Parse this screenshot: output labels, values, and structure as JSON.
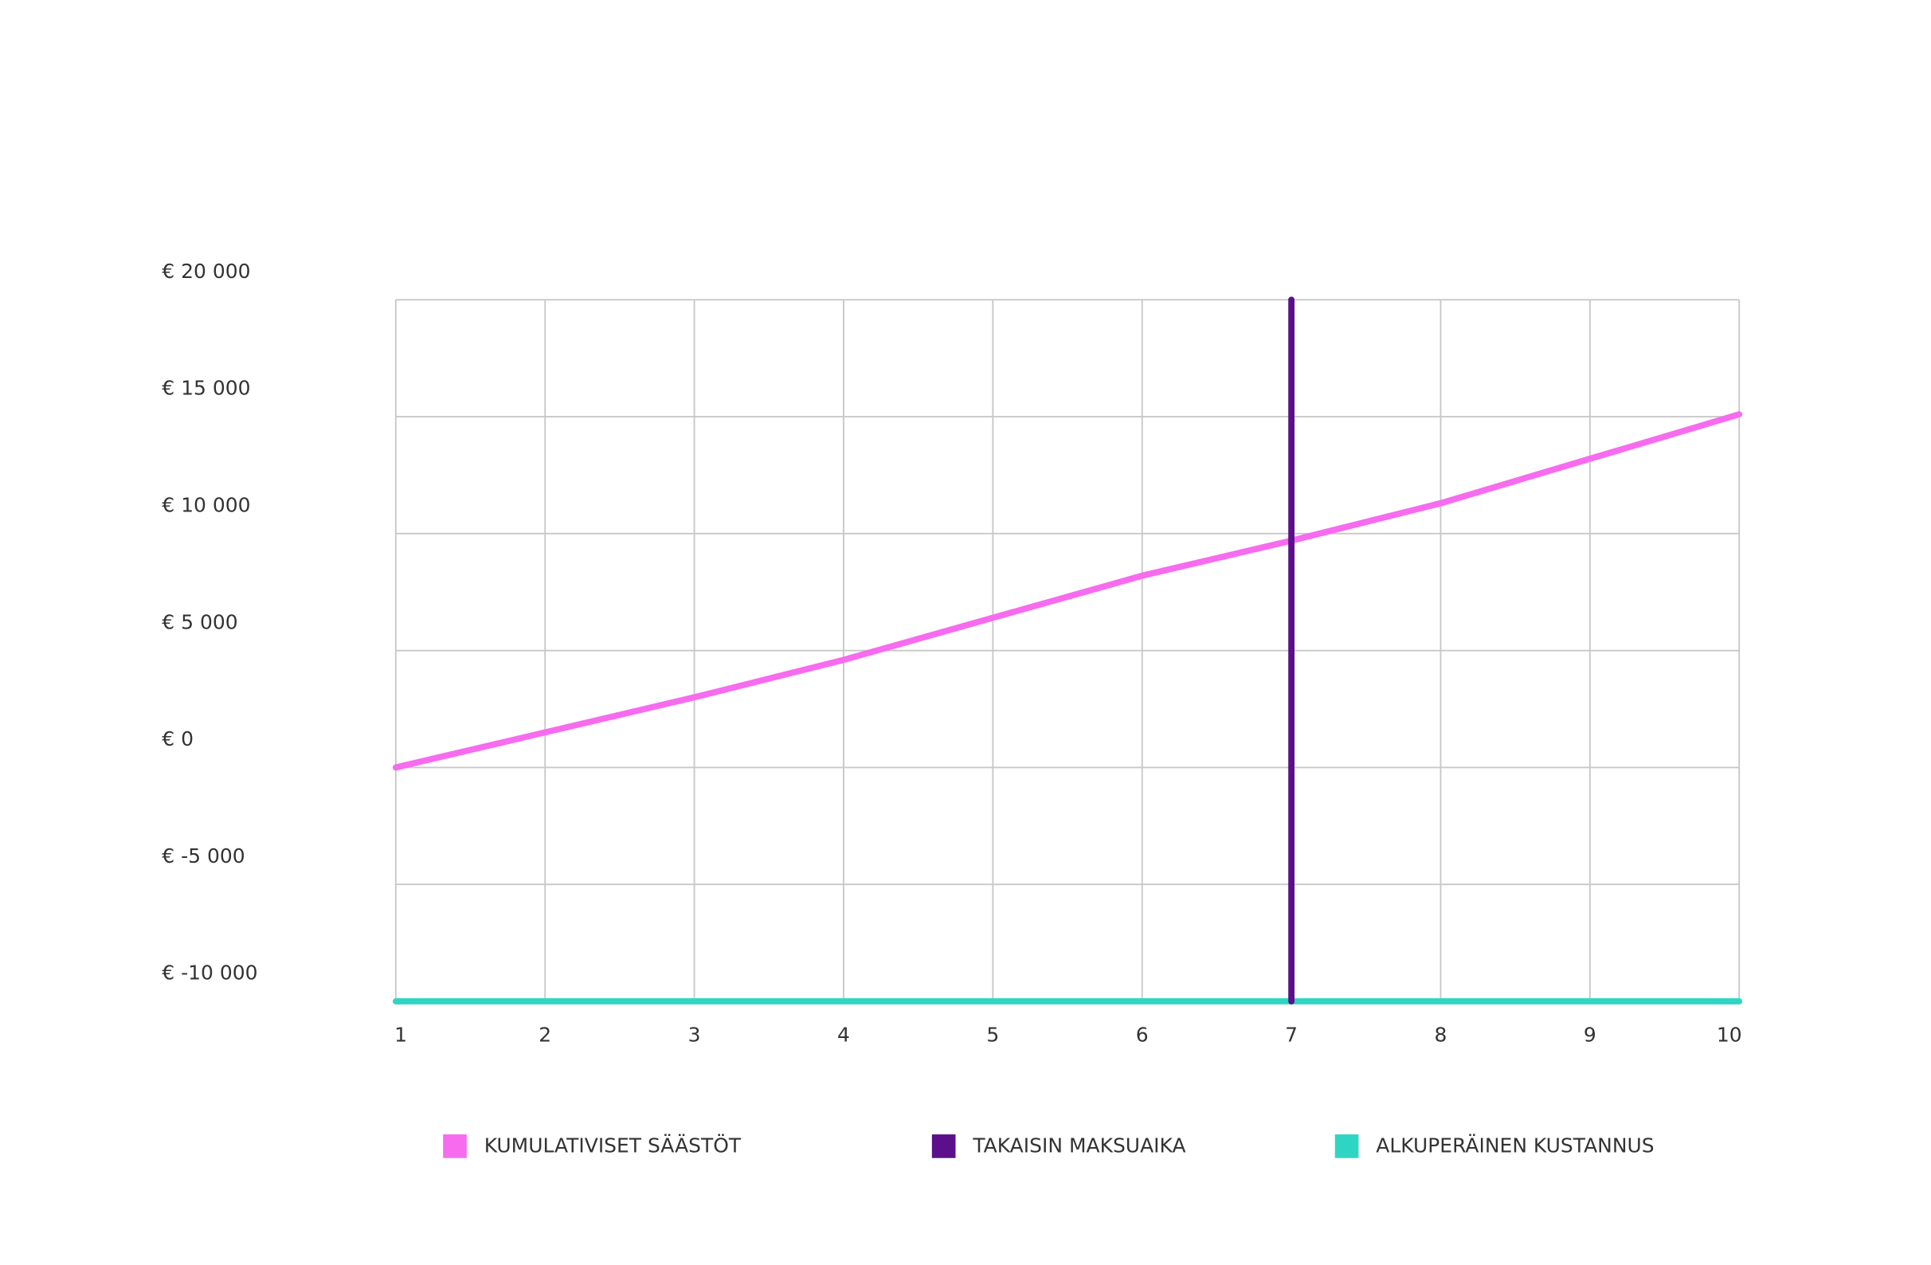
{
  "chart_data": {
    "type": "line",
    "xlim": [
      1,
      10
    ],
    "xticks": [
      1,
      2,
      3,
      4,
      5,
      6,
      7,
      8,
      9,
      10
    ],
    "ylim": [
      -10000,
      20000
    ],
    "yticks": [
      {
        "value": 20000,
        "label": "€ 20 000"
      },
      {
        "value": 15000,
        "label": "€ 15 000"
      },
      {
        "value": 10000,
        "label": "€ 10 000"
      },
      {
        "value": 5000,
        "label": "€ 5 000"
      },
      {
        "value": 0,
        "label": "€ 0"
      },
      {
        "value": -5000,
        "label": "€ -5 000"
      },
      {
        "value": -10000,
        "label": "€ -10 000"
      }
    ],
    "grid": true,
    "series": [
      {
        "name": "KUMULATIVISET SÄÄSTÖT",
        "color": "#f76bef",
        "x": [
          1,
          2,
          3,
          4,
          5,
          6,
          7,
          8,
          9,
          10
        ],
        "values": [
          0,
          1500,
          3000,
          4600,
          6400,
          8200,
          9700,
          11300,
          13200,
          15100
        ]
      },
      {
        "name": "TAKAISIN MAKSUAIKA",
        "color": "#5c0f8b",
        "x": [
          7,
          7
        ],
        "values": [
          -10000,
          20000
        ]
      },
      {
        "name": "ALKUPERÄINEN KUSTANNUS",
        "color": "#2fd5c3",
        "x": [
          1,
          2,
          3,
          4,
          5,
          6,
          7,
          8,
          9,
          10
        ],
        "values": [
          -10000,
          -10000,
          -10000,
          -10000,
          -10000,
          -10000,
          -10000,
          -10000,
          -10000,
          -10000
        ]
      }
    ]
  }
}
